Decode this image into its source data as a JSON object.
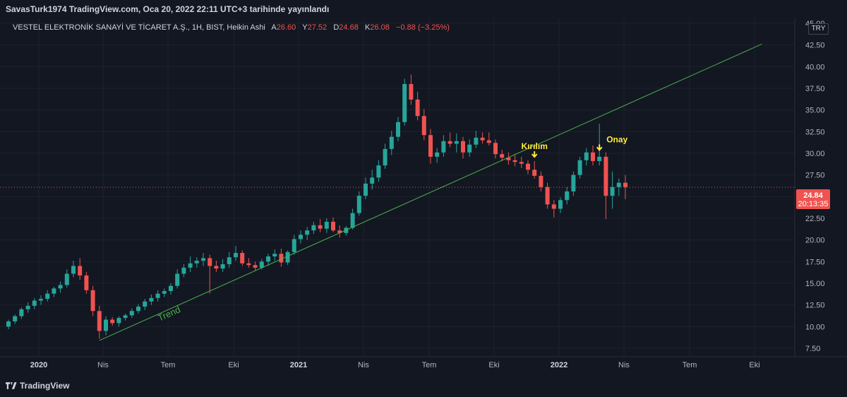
{
  "header": {
    "publisher": "SavasTurk1974 TradingView.com, Oca 20, 2022 22:11 UTC+3 tarihinde yayınlandı"
  },
  "legend": {
    "symbol": "VESTEL ELEKTRONİK SANAYİ VE TİCARET A.Ş., 1H, BIST, Heikin Ashi",
    "a_label": "A",
    "a_value": "26.60",
    "y_label": "Y",
    "y_value": "27.52",
    "d_label": "D",
    "d_value": "24.68",
    "k_label": "K",
    "k_value": "26.08",
    "change": "−0.88 (−3.25%)"
  },
  "currency": "TRY",
  "price_badge": {
    "price": "24.84",
    "countdown": "20:13:35"
  },
  "footer": {
    "brand": "TradingView"
  },
  "colors": {
    "up": "#26a69a",
    "down": "#ef5350",
    "trendline": "#4caf50",
    "annotation": "#ffeb3b",
    "background": "#131722"
  },
  "chart_data": {
    "type": "candlestick",
    "style": "Heikin Ashi",
    "yaxis": {
      "ticks": [
        "7.50",
        "10.00",
        "12.50",
        "15.00",
        "17.50",
        "20.00",
        "22.50",
        "25.00",
        "27.50",
        "30.00",
        "32.50",
        "35.00",
        "37.50",
        "40.00",
        "42.50",
        "45.00"
      ],
      "range": [
        6.5,
        45.0
      ]
    },
    "xaxis": {
      "ticks": [
        {
          "label": "2020",
          "bold": true
        },
        {
          "label": "Nis",
          "bold": false
        },
        {
          "label": "Tem",
          "bold": false
        },
        {
          "label": "Eki",
          "bold": false
        },
        {
          "label": "2021",
          "bold": true
        },
        {
          "label": "Nis",
          "bold": false
        },
        {
          "label": "Tem",
          "bold": false
        },
        {
          "label": "Eki",
          "bold": false
        },
        {
          "label": "2022",
          "bold": true
        },
        {
          "label": "Nis",
          "bold": false
        },
        {
          "label": "Tem",
          "bold": false
        },
        {
          "label": "Eki",
          "bold": false
        }
      ]
    },
    "current_price": 26.08,
    "candles": [
      [
        10.0,
        10.8,
        9.7,
        10.6
      ],
      [
        10.6,
        11.4,
        10.3,
        11.2
      ],
      [
        11.2,
        12.2,
        10.9,
        12.0
      ],
      [
        12.0,
        12.8,
        11.6,
        12.4
      ],
      [
        12.4,
        13.3,
        12.0,
        13.0
      ],
      [
        13.0,
        13.6,
        12.5,
        13.2
      ],
      [
        13.2,
        14.2,
        12.9,
        13.8
      ],
      [
        13.8,
        14.6,
        13.4,
        14.4
      ],
      [
        14.4,
        15.2,
        13.9,
        14.8
      ],
      [
        14.8,
        16.6,
        14.5,
        16.1
      ],
      [
        16.1,
        17.6,
        15.7,
        17.0
      ],
      [
        17.0,
        17.9,
        15.4,
        15.9
      ],
      [
        15.9,
        16.3,
        13.8,
        14.2
      ],
      [
        14.2,
        14.7,
        11.2,
        11.8
      ],
      [
        11.8,
        12.4,
        8.6,
        9.5
      ],
      [
        9.5,
        11.2,
        9.0,
        10.8
      ],
      [
        10.8,
        11.1,
        10.1,
        10.4
      ],
      [
        10.4,
        11.2,
        10.0,
        11.0
      ],
      [
        11.0,
        11.5,
        10.7,
        11.3
      ],
      [
        11.3,
        12.1,
        11.0,
        11.8
      ],
      [
        11.8,
        12.6,
        11.5,
        12.3
      ],
      [
        12.3,
        13.2,
        11.9,
        12.9
      ],
      [
        12.9,
        13.7,
        12.5,
        13.3
      ],
      [
        13.3,
        14.2,
        12.9,
        13.8
      ],
      [
        13.8,
        14.4,
        13.4,
        14.1
      ],
      [
        14.1,
        15.0,
        13.7,
        14.7
      ],
      [
        14.7,
        16.6,
        14.4,
        16.1
      ],
      [
        16.1,
        17.2,
        15.7,
        16.8
      ],
      [
        16.8,
        18.1,
        16.3,
        17.3
      ],
      [
        17.3,
        18.0,
        16.8,
        17.6
      ],
      [
        17.6,
        18.5,
        17.0,
        17.9
      ],
      [
        17.9,
        18.3,
        13.8,
        17.0
      ],
      [
        17.0,
        17.6,
        16.3,
        16.7
      ],
      [
        16.7,
        17.8,
        16.3,
        17.2
      ],
      [
        17.2,
        18.6,
        16.8,
        18.0
      ],
      [
        18.0,
        19.3,
        17.6,
        18.5
      ],
      [
        18.5,
        18.8,
        17.0,
        17.3
      ],
      [
        17.3,
        17.9,
        16.8,
        17.1
      ],
      [
        17.1,
        17.5,
        16.5,
        16.8
      ],
      [
        16.8,
        17.8,
        16.6,
        17.5
      ],
      [
        17.5,
        18.4,
        17.0,
        18.1
      ],
      [
        18.1,
        18.9,
        17.6,
        18.4
      ],
      [
        18.4,
        19.0,
        16.9,
        17.4
      ],
      [
        17.4,
        18.8,
        17.1,
        18.6
      ],
      [
        18.6,
        20.6,
        18.3,
        20.1
      ],
      [
        20.1,
        21.1,
        19.6,
        20.6
      ],
      [
        20.6,
        21.5,
        20.0,
        21.1
      ],
      [
        21.1,
        22.1,
        20.7,
        21.7
      ],
      [
        21.7,
        22.4,
        20.9,
        21.3
      ],
      [
        21.3,
        22.5,
        20.8,
        22.1
      ],
      [
        22.1,
        22.6,
        20.9,
        21.1
      ],
      [
        21.1,
        21.7,
        20.3,
        20.8
      ],
      [
        20.8,
        21.6,
        20.5,
        21.4
      ],
      [
        21.4,
        23.6,
        21.2,
        23.1
      ],
      [
        23.1,
        25.6,
        22.8,
        25.1
      ],
      [
        25.1,
        27.2,
        24.7,
        26.5
      ],
      [
        26.5,
        28.1,
        25.8,
        27.2
      ],
      [
        27.2,
        29.2,
        26.7,
        28.6
      ],
      [
        28.6,
        31.1,
        28.2,
        30.5
      ],
      [
        30.5,
        32.6,
        29.8,
        31.9
      ],
      [
        31.9,
        34.2,
        31.4,
        33.6
      ],
      [
        33.6,
        38.6,
        33.2,
        38.0
      ],
      [
        38.0,
        39.1,
        35.6,
        36.2
      ],
      [
        36.2,
        37.1,
        33.8,
        34.3
      ],
      [
        34.3,
        35.1,
        31.5,
        32.1
      ],
      [
        32.1,
        32.8,
        28.8,
        29.6
      ],
      [
        29.6,
        30.6,
        28.9,
        30.1
      ],
      [
        30.1,
        32.1,
        29.6,
        31.4
      ],
      [
        31.4,
        32.4,
        30.7,
        31.1
      ],
      [
        31.1,
        32.3,
        30.1,
        31.4
      ],
      [
        31.4,
        31.9,
        29.4,
        30.1
      ],
      [
        30.1,
        31.6,
        29.6,
        31.0
      ],
      [
        31.0,
        32.6,
        30.6,
        31.8
      ],
      [
        31.8,
        32.4,
        31.1,
        31.5
      ],
      [
        31.5,
        32.4,
        30.9,
        31.2
      ],
      [
        31.2,
        31.6,
        29.4,
        29.9
      ],
      [
        29.9,
        30.4,
        29.1,
        29.5
      ],
      [
        29.5,
        30.1,
        28.7,
        29.2
      ],
      [
        29.2,
        29.8,
        28.5,
        29.0
      ],
      [
        29.0,
        29.6,
        28.3,
        28.8
      ],
      [
        28.8,
        29.2,
        27.6,
        28.1
      ],
      [
        28.1,
        29.1,
        27.1,
        27.4
      ],
      [
        27.4,
        27.9,
        25.6,
        26.1
      ],
      [
        26.1,
        26.6,
        23.6,
        24.1
      ],
      [
        24.1,
        24.6,
        22.6,
        23.6
      ],
      [
        23.6,
        24.9,
        23.1,
        24.6
      ],
      [
        24.6,
        26.1,
        24.1,
        25.6
      ],
      [
        25.6,
        27.9,
        25.1,
        27.5
      ],
      [
        27.5,
        29.6,
        27.1,
        29.2
      ],
      [
        29.2,
        30.6,
        28.6,
        30.1
      ],
      [
        30.1,
        30.9,
        28.6,
        29.1
      ],
      [
        29.1,
        33.4,
        28.6,
        29.6
      ],
      [
        29.6,
        30.1,
        22.4,
        25.1
      ],
      [
        25.1,
        27.9,
        23.6,
        26.1
      ],
      [
        26.1,
        27.1,
        25.1,
        26.6
      ],
      [
        26.6,
        27.5,
        24.7,
        26.1
      ]
    ],
    "trendline": {
      "start": {
        "bar_index": 14,
        "price": 8.4
      },
      "end": {
        "bar_index": 116,
        "price": 42.6
      },
      "label": "Trend"
    },
    "annotations": [
      {
        "text": "Kırılım",
        "bar_index": 81,
        "price": 29.5
      },
      {
        "text": "Onay",
        "bar_index": 91,
        "price": 30.3
      }
    ]
  }
}
